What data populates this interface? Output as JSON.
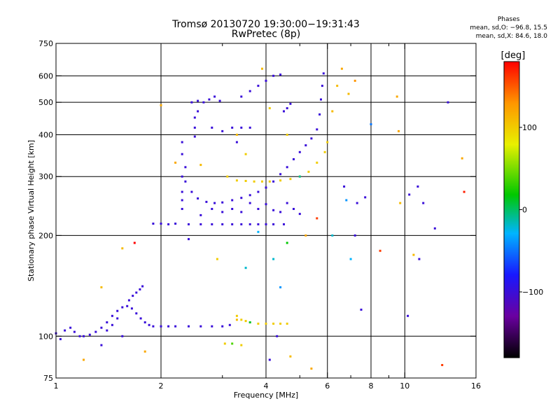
{
  "title_line1": "Tromsø 20130720 19:30:00−19:31:43",
  "title_line2": "RwPretec (8p)",
  "phases_box": {
    "header": "Phases",
    "line_o": "mean, sd,O: −96.8, 15.5",
    "line_x": "mean, sd,X: 84.6, 18.0"
  },
  "colors": {
    "background": "#ffffff",
    "grid": "#000000",
    "dominant_trace": "#1a2ae6"
  },
  "chart_data": {
    "type": "scatter",
    "xlabel": "Frequency [MHz]",
    "ylabel": "Stationary phase Virtual Height [km]",
    "x_scale": "log",
    "y_scale": "log",
    "xlim": [
      1,
      16
    ],
    "ylim": [
      75,
      750
    ],
    "x_ticks": [
      1,
      2,
      4,
      6,
      8,
      10,
      16
    ],
    "x_tick_labels": [
      "1",
      "2",
      "4",
      "6",
      "8",
      "10",
      "16"
    ],
    "x_minor_ticks": [
      3,
      5,
      7,
      9
    ],
    "y_ticks": [
      75,
      100,
      200,
      300,
      400,
      500,
      600,
      750
    ],
    "y_tick_labels": [
      "75",
      "100",
      "200",
      "300",
      "400",
      "500",
      "600",
      "750"
    ],
    "y_grid_lines": [
      100,
      200,
      300,
      400,
      500,
      600
    ],
    "grid": true,
    "colorbar": {
      "label": "[deg]",
      "range": [
        -180,
        180
      ],
      "ticks": [
        -100,
        0,
        100
      ],
      "tick_labels": [
        "−100",
        "0",
        "100"
      ],
      "colors": [
        "#000000",
        "#7a00a8",
        "#1a1aff",
        "#00b4ff",
        "#00c800",
        "#e8f000",
        "#ff9600",
        "#ff0000"
      ]
    },
    "series": [
      {
        "values": [
          [
            1.0,
            102,
            -100
          ],
          [
            1.03,
            98,
            -100
          ],
          [
            1.06,
            104,
            -100
          ],
          [
            1.1,
            106,
            -100
          ],
          [
            1.13,
            103,
            -100
          ],
          [
            1.17,
            100,
            -100
          ],
          [
            1.2,
            100,
            -100
          ],
          [
            1.25,
            101,
            -100
          ],
          [
            1.3,
            103,
            -100
          ],
          [
            1.35,
            106,
            -100
          ],
          [
            1.4,
            110,
            -100
          ],
          [
            1.45,
            115,
            -100
          ],
          [
            1.5,
            119,
            -100
          ],
          [
            1.55,
            122,
            -100
          ],
          [
            1.6,
            123,
            -100
          ],
          [
            1.65,
            121,
            -100
          ],
          [
            1.7,
            117,
            -100
          ],
          [
            1.75,
            113,
            -100
          ],
          [
            1.8,
            110,
            -100
          ],
          [
            1.85,
            108,
            -100
          ],
          [
            1.9,
            107,
            -100
          ],
          [
            2.0,
            107,
            -100
          ],
          [
            2.1,
            107,
            -100
          ],
          [
            2.2,
            107,
            -100
          ],
          [
            2.4,
            107,
            -100
          ],
          [
            2.6,
            107,
            -100
          ],
          [
            2.8,
            107,
            -100
          ],
          [
            3.0,
            107,
            -100
          ],
          [
            3.15,
            108,
            -100
          ],
          [
            1.62,
            128,
            -100
          ],
          [
            1.66,
            132,
            -100
          ],
          [
            1.7,
            135,
            -100
          ],
          [
            1.74,
            138,
            -100
          ],
          [
            1.77,
            141,
            -100
          ],
          [
            1.5,
            113,
            -100
          ],
          [
            1.45,
            108,
            -100
          ],
          [
            1.4,
            104,
            -100
          ]
        ]
      },
      {
        "values": [
          [
            3.3,
            115,
            100
          ],
          [
            3.4,
            112,
            100
          ],
          [
            3.5,
            111,
            100
          ],
          [
            3.6,
            110,
            100
          ],
          [
            3.8,
            109,
            100
          ],
          [
            4.0,
            109,
            100
          ],
          [
            4.2,
            109,
            100
          ],
          [
            4.4,
            109,
            100
          ],
          [
            4.6,
            109,
            100
          ],
          [
            3.3,
            112,
            110
          ]
        ]
      },
      {
        "values": [
          [
            1.9,
            217,
            -100
          ],
          [
            2.0,
            217,
            -100
          ],
          [
            2.1,
            216,
            -100
          ],
          [
            2.2,
            217,
            -100
          ],
          [
            2.4,
            216,
            -100
          ],
          [
            2.6,
            216,
            -100
          ],
          [
            2.8,
            216,
            -100
          ],
          [
            3.0,
            216,
            -100
          ],
          [
            3.2,
            216,
            -100
          ],
          [
            3.4,
            216,
            -100
          ],
          [
            3.6,
            216,
            -100
          ],
          [
            3.8,
            216,
            -100
          ],
          [
            4.0,
            216,
            -100
          ],
          [
            4.2,
            216,
            -100
          ],
          [
            4.5,
            216,
            -100
          ]
        ]
      },
      {
        "values": [
          [
            2.35,
            290,
            -100
          ],
          [
            2.45,
            270,
            -100
          ],
          [
            2.55,
            258,
            -100
          ],
          [
            2.7,
            252,
            -100
          ],
          [
            2.85,
            250,
            -100
          ],
          [
            3.0,
            251,
            -100
          ],
          [
            3.2,
            255,
            -100
          ],
          [
            3.4,
            259,
            -100
          ],
          [
            3.6,
            264,
            -100
          ],
          [
            3.8,
            270,
            -100
          ],
          [
            4.0,
            278,
            -100
          ],
          [
            4.2,
            290,
            -100
          ],
          [
            4.4,
            305,
            -100
          ],
          [
            4.6,
            320,
            -100
          ],
          [
            4.8,
            338,
            -100
          ],
          [
            5.0,
            355,
            -100
          ],
          [
            5.2,
            372,
            -100
          ],
          [
            5.4,
            390,
            -100
          ],
          [
            5.6,
            415,
            -100
          ],
          [
            5.7,
            460,
            -100
          ],
          [
            5.75,
            510,
            -100
          ],
          [
            5.8,
            560,
            -100
          ],
          [
            5.85,
            610,
            -100
          ]
        ]
      },
      {
        "values": [
          [
            3.3,
            292,
            100
          ],
          [
            3.5,
            291,
            100
          ],
          [
            3.7,
            290,
            100
          ],
          [
            3.9,
            290,
            100
          ],
          [
            4.1,
            290,
            100
          ],
          [
            4.4,
            292,
            100
          ],
          [
            4.7,
            295,
            100
          ],
          [
            5.0,
            300,
            100
          ],
          [
            5.3,
            310,
            100
          ],
          [
            5.6,
            330,
            100
          ],
          [
            5.9,
            355,
            100
          ],
          [
            6.0,
            380,
            100
          ]
        ]
      },
      {
        "values": [
          [
            2.45,
            500,
            -100
          ],
          [
            2.55,
            505,
            -100
          ],
          [
            2.65,
            500,
            -100
          ],
          [
            2.75,
            510,
            -100
          ],
          [
            2.85,
            520,
            -100
          ],
          [
            2.95,
            505,
            -100
          ],
          [
            3.4,
            520,
            -100
          ],
          [
            3.6,
            540,
            -100
          ],
          [
            3.8,
            560,
            -100
          ],
          [
            4.0,
            580,
            -100
          ],
          [
            4.2,
            600,
            -100
          ],
          [
            4.4,
            605,
            -100
          ],
          [
            4.5,
            470,
            -100
          ],
          [
            4.6,
            480,
            -100
          ],
          [
            4.7,
            495,
            -100
          ]
        ]
      },
      {
        "values": [
          [
            2.5,
            395,
            -100
          ],
          [
            2.5,
            420,
            -100
          ],
          [
            2.5,
            450,
            -100
          ],
          [
            2.55,
            470,
            -100
          ],
          [
            2.8,
            420,
            -100
          ],
          [
            3.0,
            410,
            -100
          ],
          [
            3.2,
            420,
            -100
          ],
          [
            3.4,
            420,
            -100
          ],
          [
            3.6,
            420,
            -100
          ],
          [
            3.3,
            380,
            -100
          ]
        ]
      },
      {
        "values": [
          [
            2.3,
            240,
            -100
          ],
          [
            2.3,
            255,
            -100
          ],
          [
            2.3,
            270,
            -100
          ],
          [
            2.3,
            300,
            -100
          ],
          [
            2.35,
            320,
            -100
          ],
          [
            2.3,
            350,
            -100
          ],
          [
            2.3,
            380,
            -100
          ],
          [
            2.6,
            230,
            -100
          ],
          [
            2.8,
            240,
            -100
          ],
          [
            3.0,
            235,
            -100
          ],
          [
            3.2,
            240,
            -100
          ],
          [
            3.4,
            235,
            -100
          ],
          [
            3.6,
            250,
            -100
          ],
          [
            3.8,
            240,
            -100
          ],
          [
            4.0,
            248,
            -100
          ],
          [
            4.2,
            238,
            -100
          ],
          [
            4.4,
            235,
            -100
          ],
          [
            4.6,
            250,
            -100
          ],
          [
            4.8,
            240,
            -100
          ],
          [
            5.0,
            232,
            -100
          ]
        ]
      },
      {
        "values": [
          [
            1.55,
            183,
            110
          ],
          [
            1.68,
            190,
            180
          ],
          [
            2.0,
            490,
            120
          ],
          [
            2.2,
            330,
            120
          ],
          [
            2.6,
            325,
            110
          ],
          [
            2.9,
            170,
            100
          ],
          [
            3.1,
            300,
            100
          ],
          [
            3.3,
            400,
            110
          ],
          [
            3.5,
            350,
            100
          ],
          [
            3.9,
            630,
            110
          ],
          [
            4.1,
            480,
            100
          ],
          [
            4.6,
            400,
            100
          ],
          [
            5.2,
            200,
            120
          ],
          [
            5.4,
            80,
            120
          ],
          [
            5.6,
            225,
            160
          ],
          [
            6.2,
            470,
            110
          ],
          [
            6.6,
            630,
            120
          ],
          [
            6.4,
            560,
            110
          ],
          [
            6.9,
            530,
            110
          ],
          [
            7.2,
            580,
            130
          ],
          [
            9.5,
            520,
            120
          ],
          [
            9.6,
            410,
            120
          ],
          [
            9.7,
            250,
            110
          ],
          [
            12.8,
            82,
            160
          ],
          [
            14.6,
            340,
            120
          ],
          [
            14.8,
            270,
            170
          ],
          [
            8.5,
            180,
            160
          ],
          [
            10.6,
            175,
            110
          ],
          [
            1.2,
            85,
            120
          ],
          [
            1.35,
            140,
            110
          ],
          [
            1.8,
            90,
            120
          ],
          [
            3.05,
            95,
            100
          ],
          [
            3.4,
            94,
            100
          ],
          [
            4.7,
            87,
            110
          ]
        ]
      },
      {
        "values": [
          [
            3.2,
            95,
            40
          ],
          [
            3.5,
            160,
            -20
          ],
          [
            3.8,
            205,
            -30
          ],
          [
            4.2,
            170,
            -20
          ],
          [
            4.4,
            140,
            -40
          ],
          [
            4.6,
            190,
            20
          ],
          [
            3.6,
            110,
            10
          ],
          [
            6.8,
            255,
            -40
          ],
          [
            7.0,
            170,
            -30
          ],
          [
            8.0,
            430,
            -50
          ],
          [
            6.2,
            200,
            -20
          ],
          [
            5.0,
            300,
            -10
          ]
        ]
      },
      {
        "values": [
          [
            6.7,
            280,
            -100
          ],
          [
            7.3,
            250,
            -100
          ],
          [
            7.5,
            120,
            -100
          ],
          [
            7.2,
            200,
            -100
          ],
          [
            7.7,
            260,
            -100
          ],
          [
            10.3,
            265,
            -100
          ],
          [
            10.9,
            280,
            -100
          ],
          [
            11.3,
            250,
            -100
          ],
          [
            12.2,
            210,
            -100
          ],
          [
            13.3,
            500,
            -100
          ],
          [
            11.0,
            170,
            -100
          ],
          [
            10.2,
            115,
            -100
          ],
          [
            4.1,
            85,
            -100
          ],
          [
            4.3,
            100,
            -100
          ],
          [
            2.4,
            195,
            -100
          ],
          [
            1.35,
            94,
            -100
          ],
          [
            1.55,
            100,
            -100
          ]
        ]
      }
    ]
  }
}
